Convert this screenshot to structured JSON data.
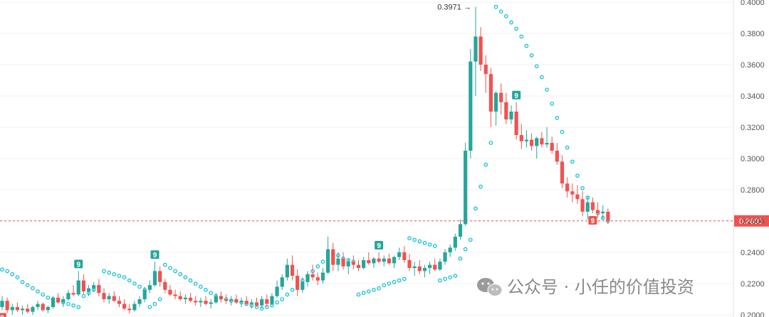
{
  "chart_data": {
    "type": "candlestick",
    "ylim": [
      0.2,
      0.4
    ],
    "y_ticks": [
      "0.4000",
      "0.3800",
      "0.3600",
      "0.3400",
      "0.3200",
      "0.3000",
      "0.2800",
      "0.2600",
      "0.2400",
      "0.2200",
      "0.2000"
    ],
    "current_price": "0.2601",
    "high_label": "0.3971 →",
    "signal_label": "9",
    "colors": {
      "up": "#26a69a",
      "down": "#ef5350",
      "sar": "#00bcd4",
      "current_line": "#ef5350",
      "badge_up": "#26a69a",
      "badge_down": "#ef5350"
    },
    "candles": [
      [
        0.205,
        0.212,
        0.203,
        0.209
      ],
      [
        0.209,
        0.211,
        0.201,
        0.203
      ],
      [
        0.203,
        0.207,
        0.2,
        0.205
      ],
      [
        0.205,
        0.208,
        0.202,
        0.203
      ],
      [
        0.203,
        0.206,
        0.2,
        0.204
      ],
      [
        0.204,
        0.207,
        0.201,
        0.202
      ],
      [
        0.202,
        0.206,
        0.2,
        0.205
      ],
      [
        0.205,
        0.209,
        0.203,
        0.207
      ],
      [
        0.207,
        0.208,
        0.202,
        0.203
      ],
      [
        0.203,
        0.206,
        0.201,
        0.205
      ],
      [
        0.205,
        0.212,
        0.204,
        0.211
      ],
      [
        0.211,
        0.214,
        0.207,
        0.208
      ],
      [
        0.208,
        0.212,
        0.205,
        0.21
      ],
      [
        0.21,
        0.216,
        0.209,
        0.214
      ],
      [
        0.214,
        0.219,
        0.212,
        0.213
      ],
      [
        0.213,
        0.228,
        0.212,
        0.222
      ],
      [
        0.222,
        0.226,
        0.213,
        0.215
      ],
      [
        0.215,
        0.219,
        0.212,
        0.217
      ],
      [
        0.217,
        0.221,
        0.215,
        0.219
      ],
      [
        0.219,
        0.223,
        0.212,
        0.214
      ],
      [
        0.214,
        0.217,
        0.208,
        0.21
      ],
      [
        0.21,
        0.214,
        0.207,
        0.212
      ],
      [
        0.212,
        0.215,
        0.208,
        0.209
      ],
      [
        0.209,
        0.212,
        0.205,
        0.207
      ],
      [
        0.207,
        0.21,
        0.203,
        0.204
      ],
      [
        0.204,
        0.207,
        0.201,
        0.203
      ],
      [
        0.203,
        0.209,
        0.202,
        0.207
      ],
      [
        0.207,
        0.212,
        0.205,
        0.21
      ],
      [
        0.21,
        0.218,
        0.208,
        0.216
      ],
      [
        0.216,
        0.222,
        0.214,
        0.219
      ],
      [
        0.219,
        0.234,
        0.218,
        0.228
      ],
      [
        0.228,
        0.231,
        0.218,
        0.221
      ],
      [
        0.221,
        0.223,
        0.214,
        0.216
      ],
      [
        0.216,
        0.219,
        0.212,
        0.213
      ],
      [
        0.213,
        0.216,
        0.21,
        0.212
      ],
      [
        0.212,
        0.215,
        0.209,
        0.21
      ],
      [
        0.21,
        0.213,
        0.207,
        0.211
      ],
      [
        0.211,
        0.214,
        0.208,
        0.209
      ],
      [
        0.209,
        0.212,
        0.206,
        0.208
      ],
      [
        0.208,
        0.211,
        0.205,
        0.209
      ],
      [
        0.209,
        0.212,
        0.206,
        0.207
      ],
      [
        0.207,
        0.21,
        0.204,
        0.208
      ],
      [
        0.208,
        0.214,
        0.207,
        0.212
      ],
      [
        0.212,
        0.215,
        0.208,
        0.21
      ],
      [
        0.21,
        0.213,
        0.207,
        0.209
      ],
      [
        0.209,
        0.212,
        0.206,
        0.21
      ],
      [
        0.21,
        0.213,
        0.207,
        0.208
      ],
      [
        0.208,
        0.211,
        0.205,
        0.209
      ],
      [
        0.209,
        0.212,
        0.206,
        0.207
      ],
      [
        0.207,
        0.21,
        0.204,
        0.208
      ],
      [
        0.208,
        0.211,
        0.205,
        0.206
      ],
      [
        0.206,
        0.212,
        0.204,
        0.21
      ],
      [
        0.21,
        0.213,
        0.205,
        0.207
      ],
      [
        0.207,
        0.214,
        0.206,
        0.212
      ],
      [
        0.212,
        0.222,
        0.211,
        0.218
      ],
      [
        0.218,
        0.226,
        0.216,
        0.224
      ],
      [
        0.224,
        0.236,
        0.222,
        0.232
      ],
      [
        0.232,
        0.238,
        0.222,
        0.225
      ],
      [
        0.225,
        0.229,
        0.212,
        0.216
      ],
      [
        0.216,
        0.224,
        0.214,
        0.221
      ],
      [
        0.221,
        0.228,
        0.218,
        0.226
      ],
      [
        0.226,
        0.232,
        0.222,
        0.224
      ],
      [
        0.224,
        0.227,
        0.219,
        0.222
      ],
      [
        0.222,
        0.23,
        0.22,
        0.227
      ],
      [
        0.227,
        0.25,
        0.226,
        0.242
      ],
      [
        0.242,
        0.246,
        0.228,
        0.232
      ],
      [
        0.232,
        0.24,
        0.228,
        0.236
      ],
      [
        0.236,
        0.24,
        0.229,
        0.231
      ],
      [
        0.231,
        0.236,
        0.226,
        0.234
      ],
      [
        0.234,
        0.238,
        0.229,
        0.232
      ],
      [
        0.232,
        0.235,
        0.228,
        0.23
      ],
      [
        0.23,
        0.237,
        0.229,
        0.235
      ],
      [
        0.235,
        0.24,
        0.232,
        0.233
      ],
      [
        0.233,
        0.237,
        0.23,
        0.236
      ],
      [
        0.236,
        0.24,
        0.233,
        0.234
      ],
      [
        0.234,
        0.238,
        0.231,
        0.236
      ],
      [
        0.236,
        0.239,
        0.232,
        0.233
      ],
      [
        0.233,
        0.238,
        0.23,
        0.237
      ],
      [
        0.237,
        0.243,
        0.235,
        0.24
      ],
      [
        0.24,
        0.244,
        0.233,
        0.235
      ],
      [
        0.235,
        0.239,
        0.228,
        0.23
      ],
      [
        0.23,
        0.234,
        0.225,
        0.231
      ],
      [
        0.231,
        0.235,
        0.226,
        0.228
      ],
      [
        0.228,
        0.232,
        0.224,
        0.23
      ],
      [
        0.23,
        0.234,
        0.226,
        0.232
      ],
      [
        0.232,
        0.236,
        0.228,
        0.229
      ],
      [
        0.229,
        0.236,
        0.228,
        0.234
      ],
      [
        0.234,
        0.242,
        0.232,
        0.24
      ],
      [
        0.24,
        0.245,
        0.237,
        0.243
      ],
      [
        0.243,
        0.252,
        0.241,
        0.25
      ],
      [
        0.25,
        0.261,
        0.248,
        0.258
      ],
      [
        0.258,
        0.31,
        0.257,
        0.305
      ],
      [
        0.305,
        0.37,
        0.3,
        0.362
      ],
      [
        0.362,
        0.397,
        0.34,
        0.378
      ],
      [
        0.378,
        0.384,
        0.356,
        0.36
      ],
      [
        0.36,
        0.366,
        0.342,
        0.354
      ],
      [
        0.354,
        0.358,
        0.32,
        0.33
      ],
      [
        0.33,
        0.343,
        0.321,
        0.342
      ],
      [
        0.342,
        0.348,
        0.328,
        0.336
      ],
      [
        0.336,
        0.342,
        0.322,
        0.325
      ],
      [
        0.325,
        0.334,
        0.322,
        0.33
      ],
      [
        0.33,
        0.336,
        0.312,
        0.315
      ],
      [
        0.315,
        0.322,
        0.306,
        0.311
      ],
      [
        0.311,
        0.318,
        0.307,
        0.312
      ],
      [
        0.312,
        0.316,
        0.305,
        0.308
      ],
      [
        0.308,
        0.314,
        0.3,
        0.313
      ],
      [
        0.313,
        0.317,
        0.307,
        0.309
      ],
      [
        0.309,
        0.32,
        0.307,
        0.31
      ],
      [
        0.31,
        0.314,
        0.303,
        0.305
      ],
      [
        0.305,
        0.31,
        0.296,
        0.298
      ],
      [
        0.298,
        0.302,
        0.281,
        0.284
      ],
      [
        0.284,
        0.288,
        0.275,
        0.279
      ],
      [
        0.279,
        0.284,
        0.272,
        0.277
      ],
      [
        0.277,
        0.283,
        0.271,
        0.274
      ],
      [
        0.274,
        0.279,
        0.263,
        0.266
      ],
      [
        0.266,
        0.276,
        0.261,
        0.272
      ],
      [
        0.272,
        0.275,
        0.265,
        0.267
      ],
      [
        0.267,
        0.272,
        0.262,
        0.265
      ],
      [
        0.265,
        0.27,
        0.261,
        0.266
      ],
      [
        0.266,
        0.268,
        0.258,
        0.2601
      ]
    ],
    "sar": [
      0.229,
      0.228,
      0.226,
      0.224,
      0.221,
      0.219,
      0.217,
      0.215,
      0.213,
      0.211,
      0.21,
      0.209,
      0.208,
      0.207,
      0.206,
      0.205,
      0.212,
      0.214,
      0.216,
      0.218,
      0.228,
      0.227,
      0.226,
      0.225,
      0.224,
      0.222,
      0.22,
      0.218,
      0.216,
      0.205,
      0.207,
      0.21,
      0.232,
      0.23,
      0.228,
      0.226,
      0.224,
      0.222,
      0.22,
      0.218,
      0.216,
      0.214,
      0.212,
      0.211,
      0.21,
      0.209,
      0.209,
      0.208,
      0.207,
      0.206,
      0.205,
      0.204,
      0.205,
      0.206,
      0.208,
      0.21,
      0.213,
      0.216,
      0.219,
      0.222,
      0.225,
      0.228,
      0.231,
      0.234,
      0.236,
      0.239,
      0.238,
      0.236,
      0.235,
      0.234,
      0.213,
      0.214,
      0.215,
      0.216,
      0.217,
      0.219,
      0.22,
      0.221,
      0.222,
      0.223,
      0.249,
      0.248,
      0.247,
      0.246,
      0.245,
      0.244,
      0.222,
      0.223,
      0.224,
      0.225,
      0.236,
      0.242,
      0.248,
      0.268,
      0.282,
      0.296,
      0.31,
      0.397,
      0.394,
      0.391,
      0.387,
      0.383,
      0.378,
      0.372,
      0.366,
      0.359,
      0.352,
      0.344,
      0.335,
      0.326,
      0.317,
      0.307,
      0.298,
      0.289,
      0.281,
      0.275,
      0.269,
      0.265,
      0.262,
      0.26
    ],
    "badges": [
      {
        "index": 15,
        "kind": "up",
        "text": "9"
      },
      {
        "index": 30,
        "kind": "up",
        "text": "9"
      },
      {
        "index": 74,
        "kind": "up",
        "text": "9"
      },
      {
        "index": 101,
        "kind": "up",
        "text": "9"
      },
      {
        "index": 116,
        "kind": "down",
        "text": "9"
      },
      {
        "index": 0,
        "kind": "down",
        "text": "9"
      }
    ]
  },
  "watermark": {
    "text": "公众号 · 小任的价值投资",
    "icon": "wechat-icon"
  }
}
